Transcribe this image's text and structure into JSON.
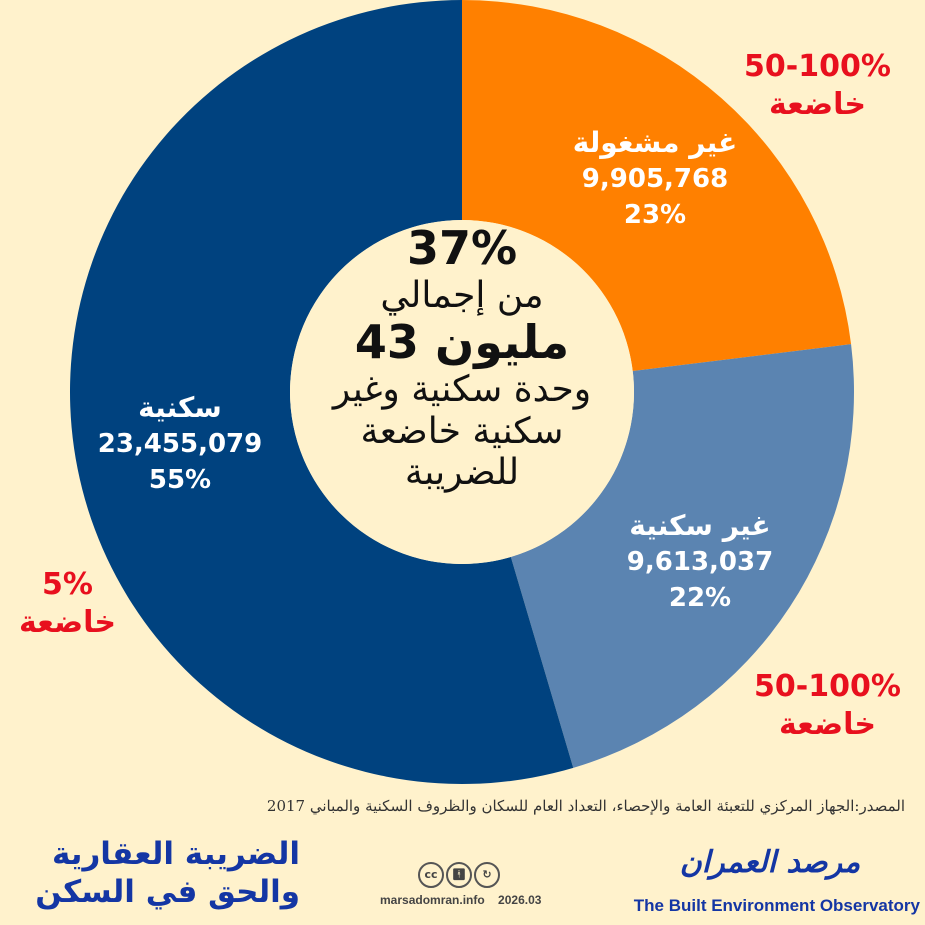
{
  "chart_data": {
    "type": "pie",
    "donut": true,
    "slices": [
      {
        "label": "غير مشغولة",
        "value": 9905768,
        "percent_label": "23%",
        "value_label": "9,905,768",
        "color": "#FF8000",
        "tax_note": [
          "50-100%",
          "خاضعة"
        ]
      },
      {
        "label": "غير سكنية",
        "value": 9613037,
        "percent_label": "22%",
        "value_label": "9,613,037",
        "color": "#5B84B1",
        "tax_note": [
          "50-100%",
          "خاضعة"
        ]
      },
      {
        "label": "سكنية",
        "value": 23455079,
        "percent_label": "55%",
        "value_label": "23,455,079",
        "color": "#00427F",
        "tax_note": [
          "5%",
          "خاضعة"
        ]
      }
    ],
    "center_text": {
      "percent": "37%",
      "line1": "من إجمالي",
      "total": "43 مليون",
      "line2": "وحدة سكنية وغير",
      "line3": "سكنية خاضعة",
      "line4": "للضريبة"
    }
  },
  "footer": {
    "source": "المصدر:الجهاز المركزي للتعبئة العامة والإحصاء، التعداد العام للسكان والظروف السكنية والمباني 2017",
    "title_line1": "الضريبة العقارية",
    "title_line2": "والحق في السكن",
    "brand_ar": "مرصد العمران",
    "brand_en": "The Built Environment Observatory",
    "website": "marsadomran.info",
    "date": "2026.03",
    "license_icons": [
      "cc",
      "by",
      "sa"
    ]
  }
}
